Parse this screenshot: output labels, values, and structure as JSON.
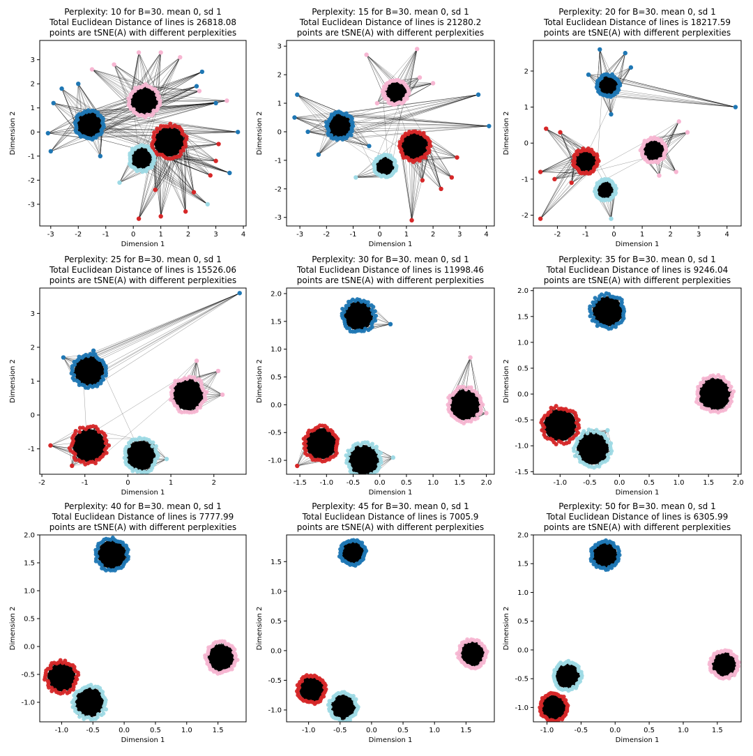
{
  "figure": {
    "title_line2_prefix": "Total Euclidean Distance of lines is ",
    "title_line3": "points are tSNE(A) with different perplexities",
    "xlabel": "Dimension 1",
    "ylabel": "Dimension 2"
  },
  "colors": {
    "cluster_blue": "#1f77b4",
    "cluster_red": "#d62728",
    "cluster_pink": "#f7b6d2",
    "cluster_lightblue": "#9edae5",
    "lines": "#000000"
  },
  "chart_data": [
    {
      "type": "scatter",
      "title": "Perplexity: 10 for B=30. mean 0, sd 1",
      "total_distance": "26818.08",
      "xlim": [
        -3.4,
        4.1
      ],
      "ylim": [
        -3.9,
        3.8
      ],
      "xticks": [
        -3,
        -2,
        -1,
        0,
        1,
        2,
        3,
        4
      ],
      "yticks": [
        -3,
        -2,
        -1,
        0,
        1,
        2,
        3
      ],
      "clusters": [
        {
          "color": "cluster_blue",
          "center": [
            -1.6,
            0.3
          ],
          "radius": 0.5,
          "outliers": [
            [
              -2.6,
              1.8
            ],
            [
              -3.1,
              -0.05
            ],
            [
              -2.9,
              1.2
            ],
            [
              -2.0,
              2.0
            ],
            [
              -3.0,
              -0.8
            ],
            [
              -1.2,
              -1.0
            ],
            [
              2.5,
              2.5
            ],
            [
              3.5,
              -1.7
            ],
            [
              3.8,
              0.0
            ],
            [
              3.0,
              1.2
            ],
            [
              2.3,
              1.9
            ]
          ]
        },
        {
          "color": "cluster_pink",
          "center": [
            0.4,
            1.3
          ],
          "radius": 0.55,
          "outliers": [
            [
              -1.5,
              2.6
            ],
            [
              0.2,
              3.3
            ],
            [
              1.0,
              3.3
            ],
            [
              1.7,
              3.1
            ],
            [
              2.4,
              1.7
            ],
            [
              3.4,
              1.3
            ],
            [
              -0.7,
              2.8
            ]
          ]
        },
        {
          "color": "cluster_red",
          "center": [
            1.3,
            -0.4
          ],
          "radius": 0.6,
          "outliers": [
            [
              0.2,
              -3.6
            ],
            [
              1.0,
              -3.5
            ],
            [
              1.9,
              -3.3
            ],
            [
              3.0,
              -1.2
            ],
            [
              3.1,
              -0.5
            ],
            [
              2.2,
              -2.5
            ],
            [
              0.8,
              -2.4
            ],
            [
              2.8,
              -1.8
            ]
          ]
        },
        {
          "color": "cluster_lightblue",
          "center": [
            0.3,
            -1.1
          ],
          "radius": 0.45,
          "outliers": [
            [
              2.7,
              -3.0
            ],
            [
              -0.5,
              -2.1
            ]
          ]
        }
      ]
    },
    {
      "type": "scatter",
      "title": "Perplexity: 15 for B=30. mean 0, sd 1",
      "total_distance": "21280.2",
      "xlim": [
        -3.5,
        4.3
      ],
      "ylim": [
        -3.3,
        3.2
      ],
      "xticks": [
        -3,
        -2,
        -1,
        0,
        1,
        2,
        3,
        4
      ],
      "yticks": [
        -3,
        -2,
        -1,
        0,
        1,
        2,
        3
      ],
      "clusters": [
        {
          "color": "cluster_blue",
          "center": [
            -1.5,
            0.2
          ],
          "radius": 0.5,
          "outliers": [
            [
              -3.1,
              1.3
            ],
            [
              -3.2,
              0.5
            ],
            [
              -2.3,
              -0.8
            ],
            [
              -2.7,
              0.0
            ],
            [
              -0.4,
              -0.5
            ],
            [
              3.7,
              1.3
            ],
            [
              4.1,
              0.2
            ]
          ]
        },
        {
          "color": "cluster_pink",
          "center": [
            0.6,
            1.4
          ],
          "radius": 0.45,
          "outliers": [
            [
              -0.5,
              2.7
            ],
            [
              1.4,
              2.9
            ],
            [
              1.5,
              1.9
            ],
            [
              2.0,
              1.7
            ],
            [
              -0.1,
              1.0
            ]
          ]
        },
        {
          "color": "cluster_red",
          "center": [
            1.3,
            -0.5
          ],
          "radius": 0.55,
          "outliers": [
            [
              1.2,
              -3.1
            ],
            [
              2.3,
              -2.0
            ],
            [
              2.9,
              -0.9
            ],
            [
              2.7,
              -1.6
            ],
            [
              1.6,
              -1.7
            ]
          ]
        },
        {
          "color": "cluster_lightblue",
          "center": [
            0.2,
            -1.2
          ],
          "radius": 0.4,
          "outliers": [
            [
              -0.9,
              -1.6
            ]
          ]
        }
      ]
    },
    {
      "type": "scatter",
      "title": "Perplexity: 20 for B=30. mean 0, sd 1",
      "total_distance": "18217.59",
      "xlim": [
        -2.85,
        4.5
      ],
      "ylim": [
        -2.3,
        2.85
      ],
      "xticks": [
        -2,
        -1,
        0,
        1,
        2,
        3,
        4
      ],
      "yticks": [
        -2,
        -1,
        0,
        1,
        2
      ],
      "clusters": [
        {
          "color": "cluster_blue",
          "center": [
            -0.2,
            1.6
          ],
          "radius": 0.38,
          "outliers": [
            [
              -0.5,
              2.6
            ],
            [
              0.4,
              2.5
            ],
            [
              0.6,
              2.1
            ],
            [
              -0.9,
              1.9
            ],
            [
              4.3,
              1.0
            ],
            [
              -0.1,
              0.8
            ]
          ]
        },
        {
          "color": "cluster_red",
          "center": [
            -1.0,
            -0.5
          ],
          "radius": 0.42,
          "outliers": [
            [
              -2.6,
              -2.1
            ],
            [
              -2.4,
              0.4
            ],
            [
              -2.6,
              -0.8
            ],
            [
              -1.9,
              0.3
            ],
            [
              -2.1,
              -1.0
            ],
            [
              -1.5,
              -1.1
            ]
          ]
        },
        {
          "color": "cluster_pink",
          "center": [
            1.4,
            -0.2
          ],
          "radius": 0.42,
          "outliers": [
            [
              2.6,
              0.3
            ],
            [
              2.3,
              0.6
            ],
            [
              2.2,
              -0.8
            ],
            [
              1.6,
              -0.9
            ]
          ]
        },
        {
          "color": "cluster_lightblue",
          "center": [
            -0.3,
            -1.3
          ],
          "radius": 0.35,
          "outliers": [
            [
              -0.1,
              -2.1
            ]
          ]
        }
      ]
    },
    {
      "type": "scatter",
      "title": "Perplexity: 25 for B=30. mean 0, sd 1",
      "total_distance": "15526.06",
      "xlim": [
        -2.05,
        2.75
      ],
      "ylim": [
        -1.75,
        3.75
      ],
      "xticks": [
        -2,
        -1,
        0,
        1,
        2
      ],
      "yticks": [
        -1,
        0,
        1,
        2,
        3
      ],
      "clusters": [
        {
          "color": "cluster_blue",
          "center": [
            -0.9,
            1.3
          ],
          "radius": 0.38,
          "outliers": [
            [
              2.6,
              3.6
            ],
            [
              -1.5,
              1.7
            ],
            [
              -0.8,
              1.9
            ]
          ]
        },
        {
          "color": "cluster_pink",
          "center": [
            1.4,
            0.6
          ],
          "radius": 0.4,
          "outliers": [
            [
              1.6,
              1.6
            ],
            [
              2.1,
              1.3
            ],
            [
              2.2,
              0.6
            ]
          ]
        },
        {
          "color": "cluster_red",
          "center": [
            -0.9,
            -0.9
          ],
          "radius": 0.42,
          "outliers": [
            [
              -1.8,
              -0.9
            ],
            [
              -1.3,
              -1.5
            ]
          ]
        },
        {
          "color": "cluster_lightblue",
          "center": [
            0.3,
            -1.2
          ],
          "radius": 0.38,
          "outliers": [
            [
              0.9,
              -1.3
            ]
          ]
        }
      ]
    },
    {
      "type": "scatter",
      "title": "Perplexity: 30 for B=30. mean 0, sd 1",
      "total_distance": "11998.46",
      "xlim": [
        -1.75,
        2.15
      ],
      "ylim": [
        -1.25,
        2.1
      ],
      "xticks": [
        -1.5,
        -1.0,
        -0.5,
        0.0,
        0.5,
        1.0,
        1.5,
        2.0
      ],
      "yticks": [
        -1.0,
        -0.5,
        0.0,
        0.5,
        1.0,
        1.5,
        2.0
      ],
      "clusters": [
        {
          "color": "cluster_blue",
          "center": [
            -0.4,
            1.6
          ],
          "radius": 0.3,
          "outliers": [
            [
              0.2,
              1.45
            ]
          ]
        },
        {
          "color": "cluster_pink",
          "center": [
            1.6,
            0.0
          ],
          "radius": 0.32,
          "outliers": [
            [
              1.7,
              0.85
            ],
            [
              2.0,
              -0.15
            ]
          ]
        },
        {
          "color": "cluster_red",
          "center": [
            -1.1,
            -0.7
          ],
          "radius": 0.32,
          "outliers": [
            [
              -1.55,
              -1.1
            ]
          ]
        },
        {
          "color": "cluster_lightblue",
          "center": [
            -0.3,
            -1.0
          ],
          "radius": 0.32,
          "outliers": [
            [
              0.25,
              -0.95
            ]
          ]
        }
      ]
    },
    {
      "type": "scatter",
      "title": "Perplexity: 35 for B=30. mean 0, sd 1",
      "total_distance": "9246.04",
      "xlim": [
        -1.45,
        2.05
      ],
      "ylim": [
        -1.55,
        2.05
      ],
      "xticks": [
        -1.0,
        -0.5,
        0.0,
        0.5,
        1.0,
        1.5,
        2.0
      ],
      "yticks": [
        -1.5,
        -1.0,
        -0.5,
        0.0,
        0.5,
        1.0,
        1.5,
        2.0
      ],
      "clusters": [
        {
          "color": "cluster_blue",
          "center": [
            -0.2,
            1.6
          ],
          "radius": 0.28,
          "outliers": []
        },
        {
          "color": "cluster_pink",
          "center": [
            1.6,
            0.0
          ],
          "radius": 0.3,
          "outliers": []
        },
        {
          "color": "cluster_red",
          "center": [
            -1.0,
            -0.6
          ],
          "radius": 0.3,
          "outliers": []
        },
        {
          "color": "cluster_lightblue",
          "center": [
            -0.45,
            -1.05
          ],
          "radius": 0.3,
          "outliers": [
            [
              -0.2,
              -0.7
            ]
          ]
        }
      ]
    },
    {
      "type": "scatter",
      "title": "Perplexity: 40 for B=30. mean 0, sd 1",
      "total_distance": "7777.99",
      "xlim": [
        -1.35,
        1.95
      ],
      "ylim": [
        -1.35,
        2.0
      ],
      "xticks": [
        -1.0,
        -0.5,
        0.0,
        0.5,
        1.0,
        1.5
      ],
      "yticks": [
        -1.0,
        -0.5,
        0.0,
        0.5,
        1.0,
        1.5,
        2.0
      ],
      "clusters": [
        {
          "color": "cluster_blue",
          "center": [
            -0.2,
            1.65
          ],
          "radius": 0.25,
          "outliers": []
        },
        {
          "color": "cluster_pink",
          "center": [
            1.55,
            -0.2
          ],
          "radius": 0.24,
          "outliers": []
        },
        {
          "color": "cluster_red",
          "center": [
            -1.0,
            -0.55
          ],
          "radius": 0.25,
          "outliers": []
        },
        {
          "color": "cluster_lightblue",
          "center": [
            -0.55,
            -1.0
          ],
          "radius": 0.26,
          "outliers": []
        }
      ]
    },
    {
      "type": "scatter",
      "title": "Perplexity: 45 for B=30. mean 0, sd 1",
      "total_distance": "7005.9",
      "xlim": [
        -1.35,
        1.95
      ],
      "ylim": [
        -1.2,
        1.95
      ],
      "xticks": [
        -1.0,
        -0.5,
        0.0,
        0.5,
        1.0,
        1.5
      ],
      "yticks": [
        -1.0,
        -0.5,
        0.0,
        0.5,
        1.0,
        1.5
      ],
      "clusters": [
        {
          "color": "cluster_blue",
          "center": [
            -0.3,
            1.65
          ],
          "radius": 0.2,
          "outliers": []
        },
        {
          "color": "cluster_pink",
          "center": [
            1.6,
            -0.05
          ],
          "radius": 0.22,
          "outliers": []
        },
        {
          "color": "cluster_red",
          "center": [
            -0.95,
            -0.65
          ],
          "radius": 0.22,
          "outliers": []
        },
        {
          "color": "cluster_lightblue",
          "center": [
            -0.45,
            -0.95
          ],
          "radius": 0.22,
          "outliers": []
        }
      ]
    },
    {
      "type": "scatter",
      "title": "Perplexity: 50 for B=30. mean 0, sd 1",
      "total_distance": "6305.99",
      "xlim": [
        -1.2,
        1.85
      ],
      "ylim": [
        -1.25,
        2.0
      ],
      "xticks": [
        -1.0,
        -0.5,
        0.0,
        0.5,
        1.0,
        1.5
      ],
      "yticks": [
        -1.0,
        -0.5,
        0.0,
        0.5,
        1.0,
        1.5,
        2.0
      ],
      "clusters": [
        {
          "color": "cluster_blue",
          "center": [
            -0.15,
            1.65
          ],
          "radius": 0.2,
          "outliers": []
        },
        {
          "color": "cluster_pink",
          "center": [
            1.6,
            -0.25
          ],
          "radius": 0.2,
          "outliers": []
        },
        {
          "color": "cluster_red",
          "center": [
            -0.9,
            -1.0
          ],
          "radius": 0.2,
          "outliers": []
        },
        {
          "color": "cluster_lightblue",
          "center": [
            -0.7,
            -0.45
          ],
          "radius": 0.2,
          "outliers": []
        }
      ]
    }
  ]
}
